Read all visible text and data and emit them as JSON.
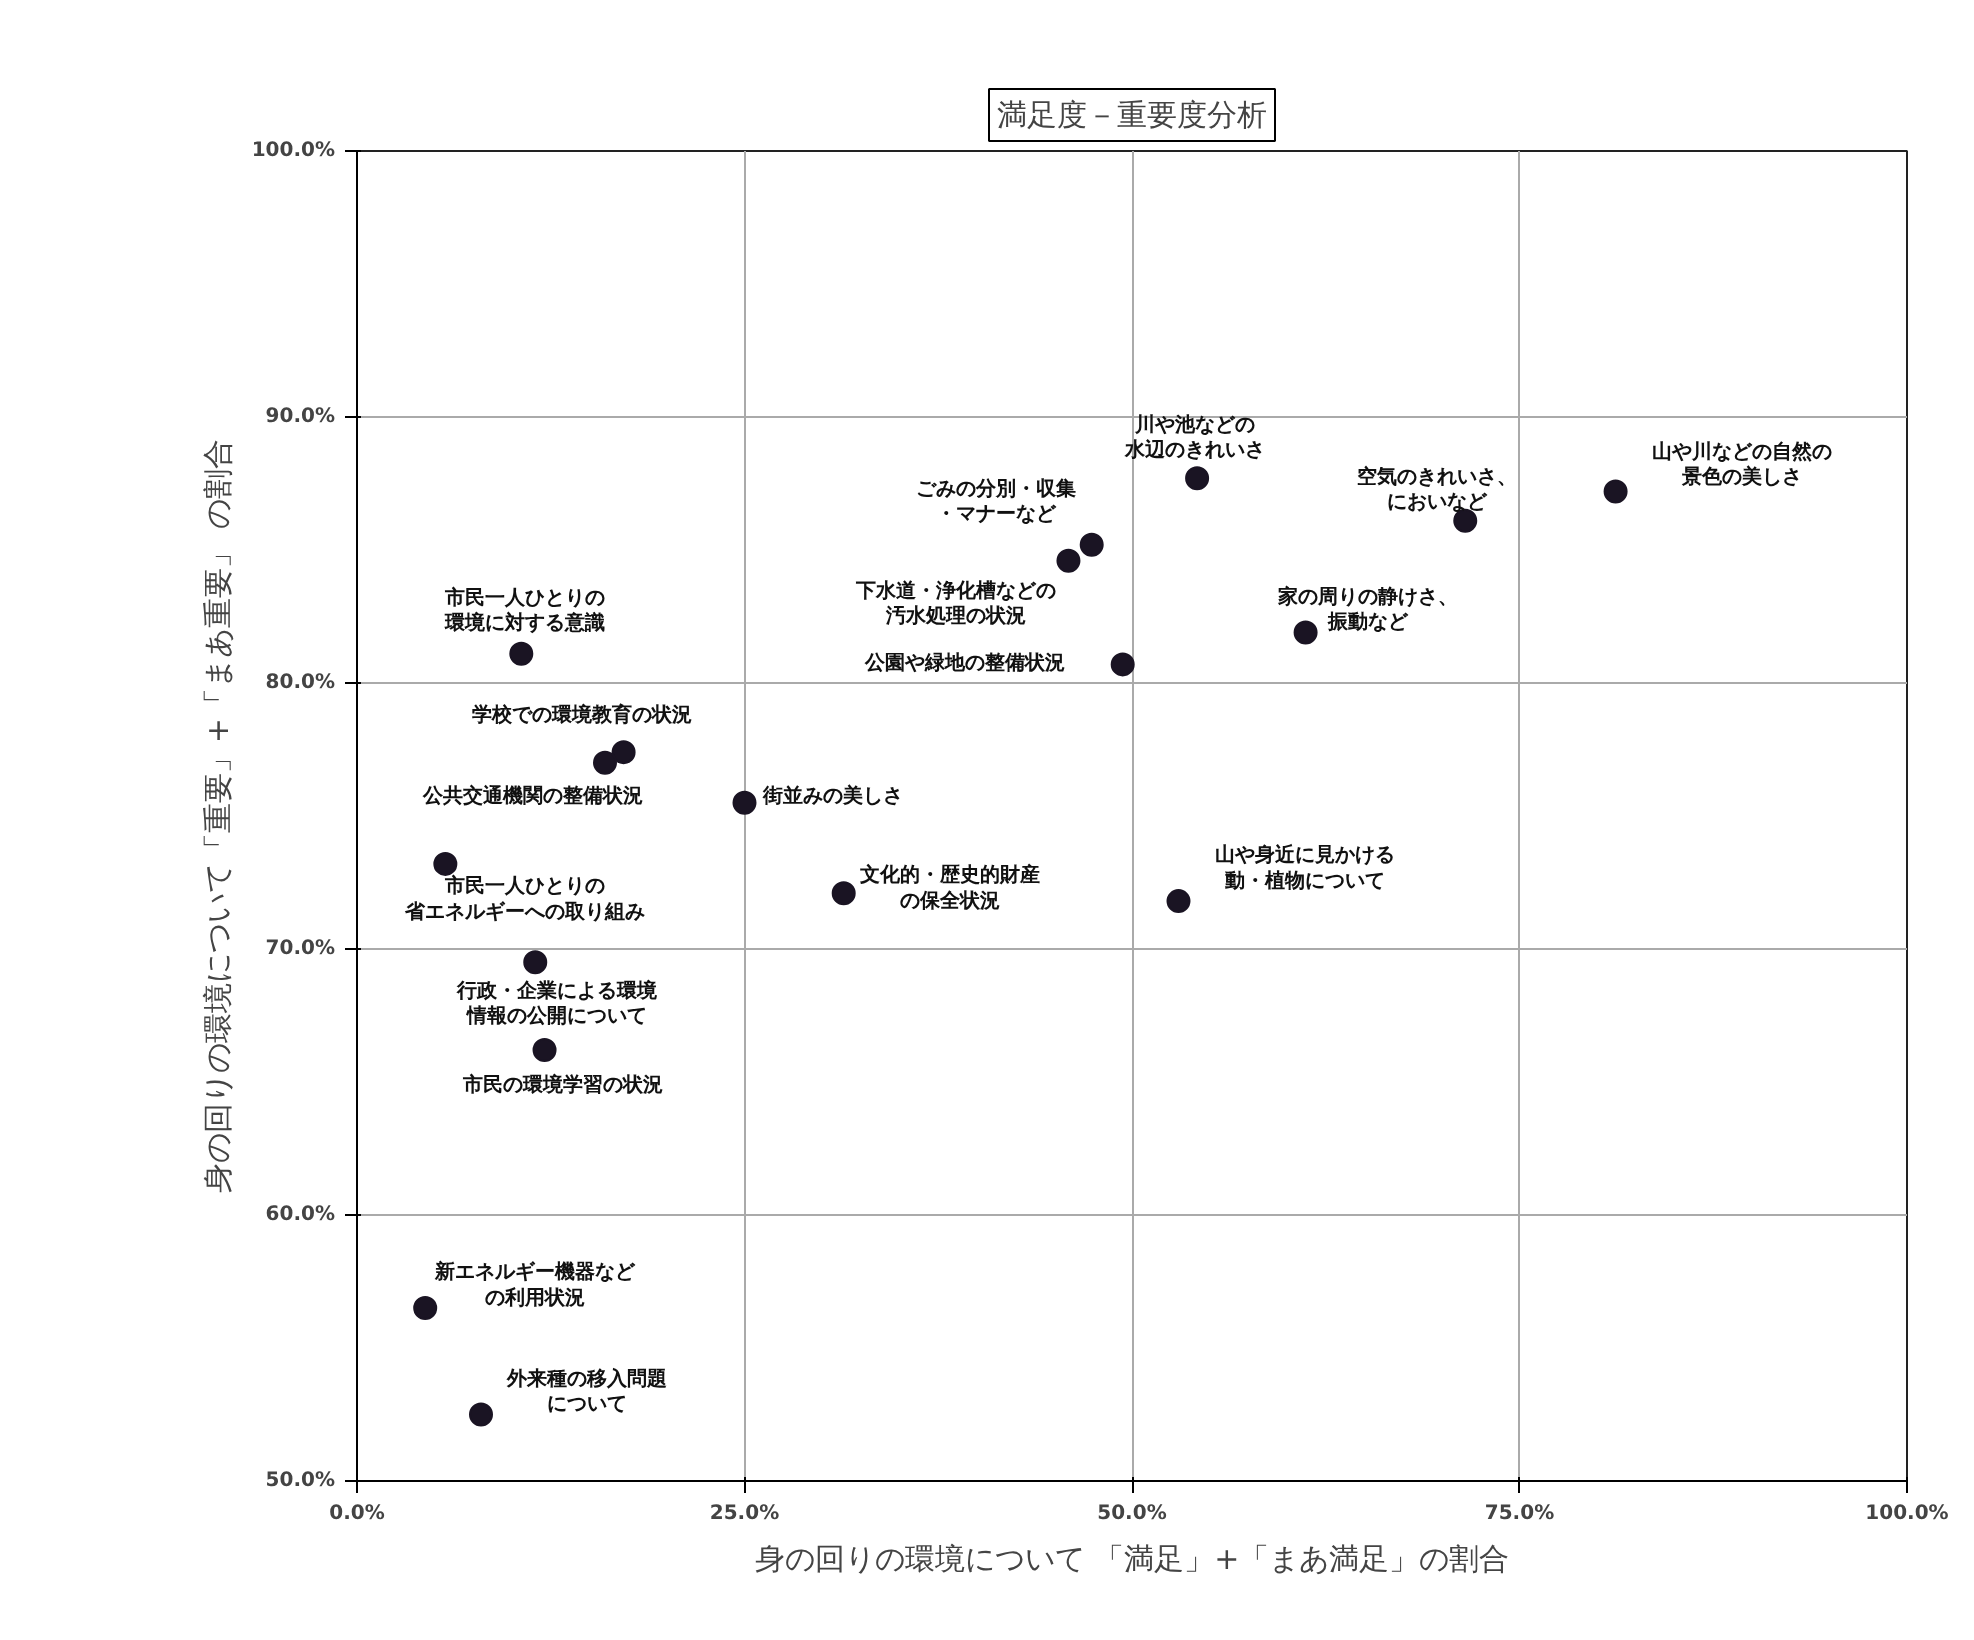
{
  "chart_data": {
    "type": "scatter",
    "title": "満足度－重要度分析",
    "xlabel": "身の回りの環境について 「満足」+「まあ満足」の割合",
    "ylabel": "身の回りの環境について「重要」+「まあ重要」 の割合",
    "x": [
      10.6,
      17.2,
      16.0,
      25.0,
      5.7,
      11.5,
      12.1,
      31.4,
      53.0,
      47.4,
      45.9,
      49.4,
      54.2,
      71.5,
      61.2,
      81.2,
      4.4,
      8.0
    ],
    "values": [
      81.1,
      77.4,
      77.0,
      75.5,
      73.2,
      69.5,
      66.2,
      72.1,
      71.8,
      85.2,
      84.6,
      80.7,
      87.7,
      86.1,
      81.9,
      87.2,
      56.5,
      52.5
    ],
    "color": "#1a1423",
    "marker": "circle",
    "grid": true,
    "xlim": [
      0,
      100
    ],
    "ylim": [
      50,
      100
    ],
    "xticks": [
      {
        "value": 0,
        "label": "0.0%"
      },
      {
        "value": 25,
        "label": "25.0%"
      },
      {
        "value": 50,
        "label": "50.0%"
      },
      {
        "value": 75,
        "label": "75.0%"
      },
      {
        "value": 100,
        "label": "100.0%"
      }
    ],
    "yticks": [
      {
        "value": 50,
        "label": "50.0%"
      },
      {
        "value": 60,
        "label": "60.0%"
      },
      {
        "value": 70,
        "label": "70.0%"
      },
      {
        "value": 80,
        "label": "80.0%"
      },
      {
        "value": 90,
        "label": "90.0%"
      },
      {
        "value": 100,
        "label": "100.0%"
      }
    ],
    "annotations": [
      {
        "text": "市民一人ひとりの環境に対する意識",
        "x": 10.6,
        "y": 81.1
      },
      {
        "text": "学校での環境教育の状況",
        "x": 17.2,
        "y": 77.4
      },
      {
        "text": "公共交通機関の整備状況",
        "x": 16.0,
        "y": 77.0
      },
      {
        "text": "街並みの美しさ",
        "x": 25.0,
        "y": 75.5
      },
      {
        "text": "市民一人ひとりの省エネルギーへの取り組み",
        "x": 5.7,
        "y": 73.2
      },
      {
        "text": "行政・企業による環境情報の公開について",
        "x": 11.5,
        "y": 69.5
      },
      {
        "text": "市民の環境学習の状況",
        "x": 12.1,
        "y": 66.2
      },
      {
        "text": "文化的・歴史的財産の保全状況",
        "x": 31.4,
        "y": 72.1
      },
      {
        "text": "山や身近に見かける動・植物について",
        "x": 53.0,
        "y": 71.8
      },
      {
        "text": "ごみの分別・収集・マナーなど",
        "x": 47.4,
        "y": 85.2
      },
      {
        "text": "下水道・浄化槽などの汚水処理の状況",
        "x": 45.9,
        "y": 84.6
      },
      {
        "text": "公園や緑地の整備状況",
        "x": 49.4,
        "y": 80.7
      },
      {
        "text": "川や池などの水辺のきれいさ",
        "x": 54.2,
        "y": 87.7
      },
      {
        "text": "空気のきれいさ、においなど",
        "x": 71.5,
        "y": 86.1
      },
      {
        "text": "家の周りの静けさ、振動など",
        "x": 61.2,
        "y": 81.9
      },
      {
        "text": "山や川などの自然の景色の美しさ",
        "x": 81.2,
        "y": 87.2
      },
      {
        "text": "新エネルギー機器などの利用状況",
        "x": 4.4,
        "y": 56.5
      },
      {
        "text": "外来種の移入問題について",
        "x": 8.0,
        "y": 52.5
      }
    ]
  }
}
